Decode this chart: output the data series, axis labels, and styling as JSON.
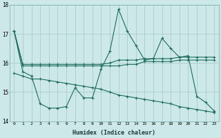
{
  "xlabel": "Humidex (Indice chaleur)",
  "bg_color": "#cce8e8",
  "grid_color": "#aacccc",
  "line_color": "#1a6b5a",
  "xlim": [
    -0.5,
    23.5
  ],
  "ylim": [
    14,
    18
  ],
  "yticks": [
    14,
    15,
    16,
    17,
    18
  ],
  "xticks": [
    0,
    1,
    2,
    3,
    4,
    5,
    6,
    7,
    8,
    9,
    10,
    11,
    12,
    13,
    14,
    15,
    16,
    17,
    18,
    19,
    20,
    21,
    22,
    23
  ],
  "line1": [
    17.1,
    15.9,
    15.9,
    15.9,
    15.9,
    15.9,
    15.9,
    15.9,
    15.9,
    15.9,
    15.9,
    15.9,
    15.9,
    15.95,
    15.95,
    16.05,
    16.05,
    16.05,
    16.05,
    16.1,
    16.1,
    16.1,
    16.1,
    16.1
  ],
  "line2": [
    17.1,
    15.95,
    15.95,
    15.95,
    15.95,
    15.95,
    15.95,
    15.95,
    15.95,
    15.95,
    15.95,
    16.0,
    16.1,
    16.1,
    16.1,
    16.15,
    16.15,
    16.15,
    16.15,
    16.2,
    16.2,
    16.2,
    16.2,
    16.2
  ],
  "line3": [
    17.1,
    15.7,
    15.55,
    14.6,
    14.45,
    14.45,
    14.5,
    15.15,
    14.8,
    14.8,
    15.8,
    16.4,
    17.85,
    17.1,
    16.6,
    16.1,
    16.15,
    16.85,
    16.5,
    16.2,
    16.25,
    14.85,
    14.65,
    14.35
  ],
  "line4": [
    15.65,
    15.55,
    15.45,
    15.45,
    15.4,
    15.35,
    15.3,
    15.25,
    15.2,
    15.15,
    15.1,
    15.0,
    14.9,
    14.85,
    14.8,
    14.75,
    14.7,
    14.65,
    14.6,
    14.5,
    14.45,
    14.4,
    14.35,
    14.3
  ]
}
